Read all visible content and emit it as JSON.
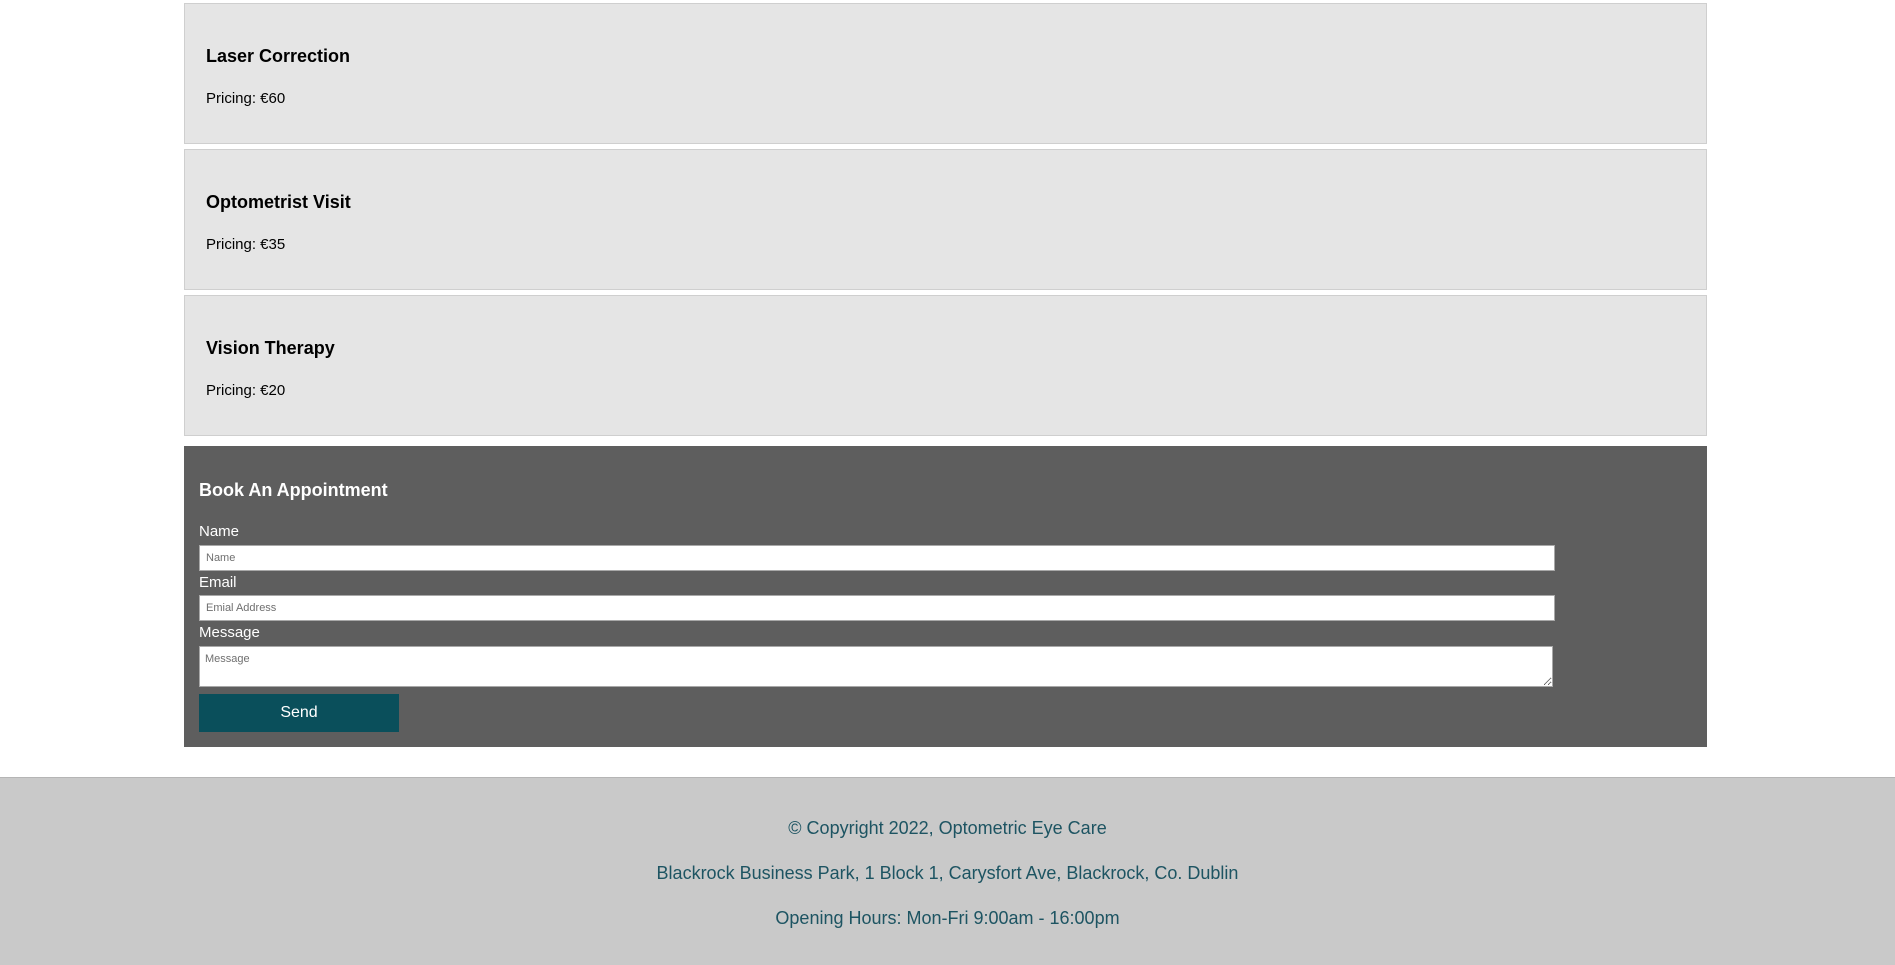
{
  "services": [
    {
      "name": "Laser Correction",
      "pricing": "Pricing: €60"
    },
    {
      "name": "Optometrist Visit",
      "pricing": "Pricing: €35"
    },
    {
      "name": "Vision Therapy",
      "pricing": "Pricing: €20"
    }
  ],
  "booking": {
    "title": "Book An Appointment",
    "name_label": "Name",
    "name_placeholder": "Name",
    "email_label": "Email",
    "email_placeholder": "Emial Address",
    "message_label": "Message",
    "message_placeholder": "Message",
    "send_label": "Send"
  },
  "footer": {
    "copyright": "© Copyright 2022, Optometric Eye Care",
    "address": "Blackrock Business Park, 1 Block 1, Carysfort Ave, Blackrock, Co. Dublin",
    "hours": "Opening Hours: Mon-Fri 9:00am - 16:00pm"
  },
  "colors": {
    "card_bg": "#e5e5e5",
    "booking_bg": "#5e5e5e",
    "button_bg": "#0a4f5b",
    "footer_bg": "#c9c9c9",
    "footer_text": "#1d5462"
  }
}
